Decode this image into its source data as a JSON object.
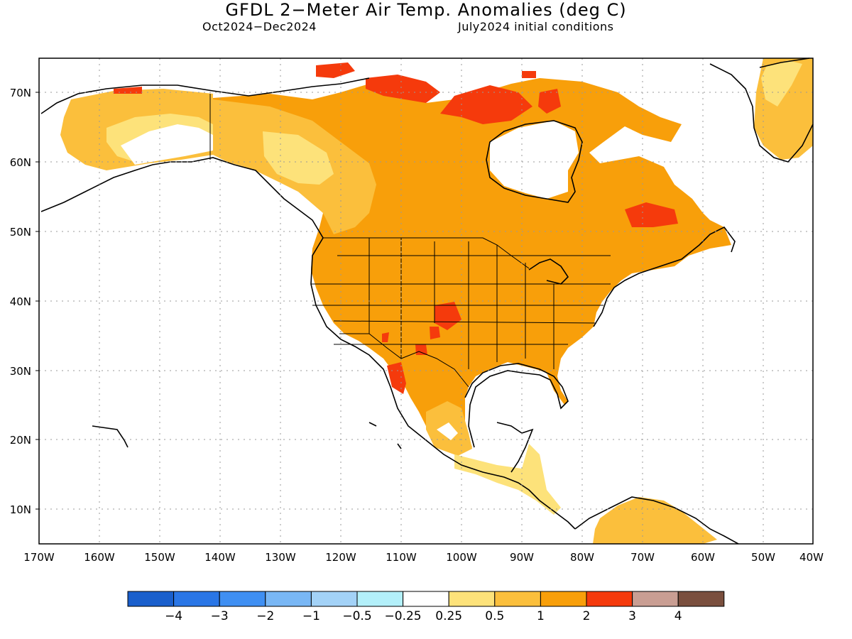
{
  "title": "GFDL 2−Meter Air Temp. Anomalies (deg C)",
  "period": "Oct2024−Dec2024",
  "initial_conditions": "July2024 initial conditions",
  "lat_labels": [
    "70N",
    "60N",
    "50N",
    "40N",
    "30N",
    "20N",
    "10N"
  ],
  "lon_labels": [
    "170W",
    "160W",
    "150W",
    "140W",
    "130W",
    "120W",
    "110W",
    "100W",
    "90W",
    "80W",
    "70W",
    "60W",
    "50W",
    "40W"
  ],
  "colorbar": {
    "labels": [
      "−4",
      "−3",
      "−2",
      "−1",
      "−0.5",
      "−0.25",
      "0.25",
      "0.5",
      "1",
      "2",
      "3",
      "4"
    ],
    "colors": [
      "#1a5fcc",
      "#2a76e6",
      "#3f8ff2",
      "#79b7f5",
      "#a3d2f7",
      "#b3f0fa",
      "#ffffff",
      "#fde27a",
      "#fbbf3c",
      "#f89f0a",
      "#f53a0c",
      "#c99e93",
      "#7a4f3e"
    ]
  }
}
